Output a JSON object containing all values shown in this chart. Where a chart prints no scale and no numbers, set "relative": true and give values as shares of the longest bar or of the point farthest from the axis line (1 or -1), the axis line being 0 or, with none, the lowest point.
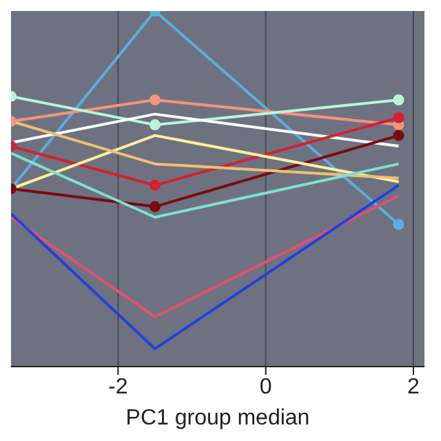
{
  "chart_data": {
    "type": "line",
    "xlabel": "PC1 group median",
    "relative": true,
    "x": [
      -3.45,
      -1.5,
      1.8
    ],
    "xlim": [
      -3.45,
      2.15
    ],
    "xticks": [
      -2,
      0,
      2
    ],
    "grid": "x",
    "series": [
      {
        "color": "#5aaee0",
        "values": [
          0.5,
          1.0,
          0.4
        ],
        "marker": "circle"
      },
      {
        "color": "#f4937a",
        "values": [
          0.69,
          0.75,
          0.68
        ],
        "marker": "circle"
      },
      {
        "color": "#b8f5d8",
        "values": [
          0.76,
          0.68,
          0.75
        ],
        "marker": "circle"
      },
      {
        "color": "#ffffff",
        "values": [
          0.63,
          0.71,
          0.62
        ]
      },
      {
        "color": "#d42030",
        "values": [
          0.62,
          0.51,
          0.7
        ],
        "marker": "circle"
      },
      {
        "color": "#7a0a14",
        "values": [
          0.5,
          0.45,
          0.65
        ],
        "marker": "circle"
      },
      {
        "color": "#fff0a0",
        "values": [
          0.5,
          0.65,
          0.52
        ]
      },
      {
        "color": "#f0c070",
        "values": [
          0.69,
          0.57,
          0.53
        ]
      },
      {
        "color": "#7ee0d0",
        "values": [
          0.6,
          0.42,
          0.57
        ]
      },
      {
        "color": "#e05070",
        "values": [
          0.42,
          0.14,
          0.48
        ]
      },
      {
        "color": "#2040e0",
        "values": [
          0.43,
          0.05,
          0.51
        ]
      }
    ]
  }
}
